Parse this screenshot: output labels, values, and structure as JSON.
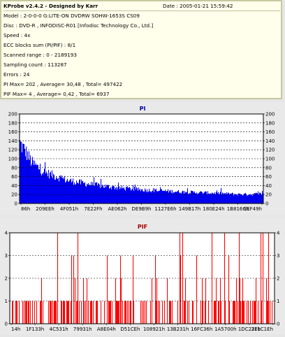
{
  "header": {
    "title": "KProbe v2.4.2 - Designed by Karr",
    "date": "Date : 2005-01-21 15:59:42"
  },
  "info_lines": [
    "Model : 2-0-0-0 G:LITE-ON DVDRW SOHW-1653S CS09",
    "Disc : DVD-R , INFODISC-R01 [Infodisc Technology Co., Ltd.]",
    "Speed : 4x",
    "ECC blocks sum (PI/PIF) : 8/1",
    "Scanned range : 0 - 2189193",
    "Sampling count : 113287",
    "Errors : 24",
    "PI Max= 202 , Average= 30,48 , Total= 497422",
    "PIF Max= 4 , Average= 0,42 , Total= 6937"
  ],
  "colors": {
    "pi_fill": "#0000ee",
    "pif_fill": "#ff0000",
    "pi_title": "#0000aa",
    "pif_title": "#aa0000",
    "plot_bg": "#ffffff",
    "grid": "#000000"
  },
  "chart_data": [
    {
      "type": "area",
      "title": "PI",
      "ylim": [
        0,
        200
      ],
      "y_ticks": [
        0,
        20,
        40,
        60,
        80,
        100,
        120,
        140,
        160,
        180,
        200
      ],
      "x_ticks": [
        "86h",
        "209EEh",
        "4F051h",
        "7E22Fh",
        "AE062h",
        "DE9B9h",
        "1127E6h",
        "149B17h",
        "180E24h",
        "1B8166h",
        "1EF49h"
      ],
      "grid": "horizontal dashed",
      "max": 202,
      "average": 30.48,
      "total": 497422,
      "envelope": {
        "x": [
          0,
          0.02,
          0.05,
          0.1,
          0.2,
          0.3,
          0.4,
          0.5,
          0.6,
          0.7,
          0.8,
          0.9,
          0.95,
          1.0
        ],
        "y": [
          145,
          128,
          98,
          75,
          55,
          45,
          38,
          33,
          30,
          27,
          25,
          22,
          22,
          24
        ]
      }
    },
    {
      "type": "bar",
      "title": "PIF",
      "ylim": [
        0,
        4
      ],
      "y_ticks": [
        0,
        1,
        2,
        3,
        4
      ],
      "x_ticks": [
        "14h",
        "1F133h",
        "4C531h",
        "79931h",
        "A8E04h",
        "D51CEh",
        "108921h",
        "13B231h",
        "16FC36h",
        "1A5700h",
        "1DC23Fh",
        "211C1Eh"
      ],
      "grid": "horizontal dashed",
      "max": 4,
      "average": 0.42,
      "total": 6937
    }
  ]
}
